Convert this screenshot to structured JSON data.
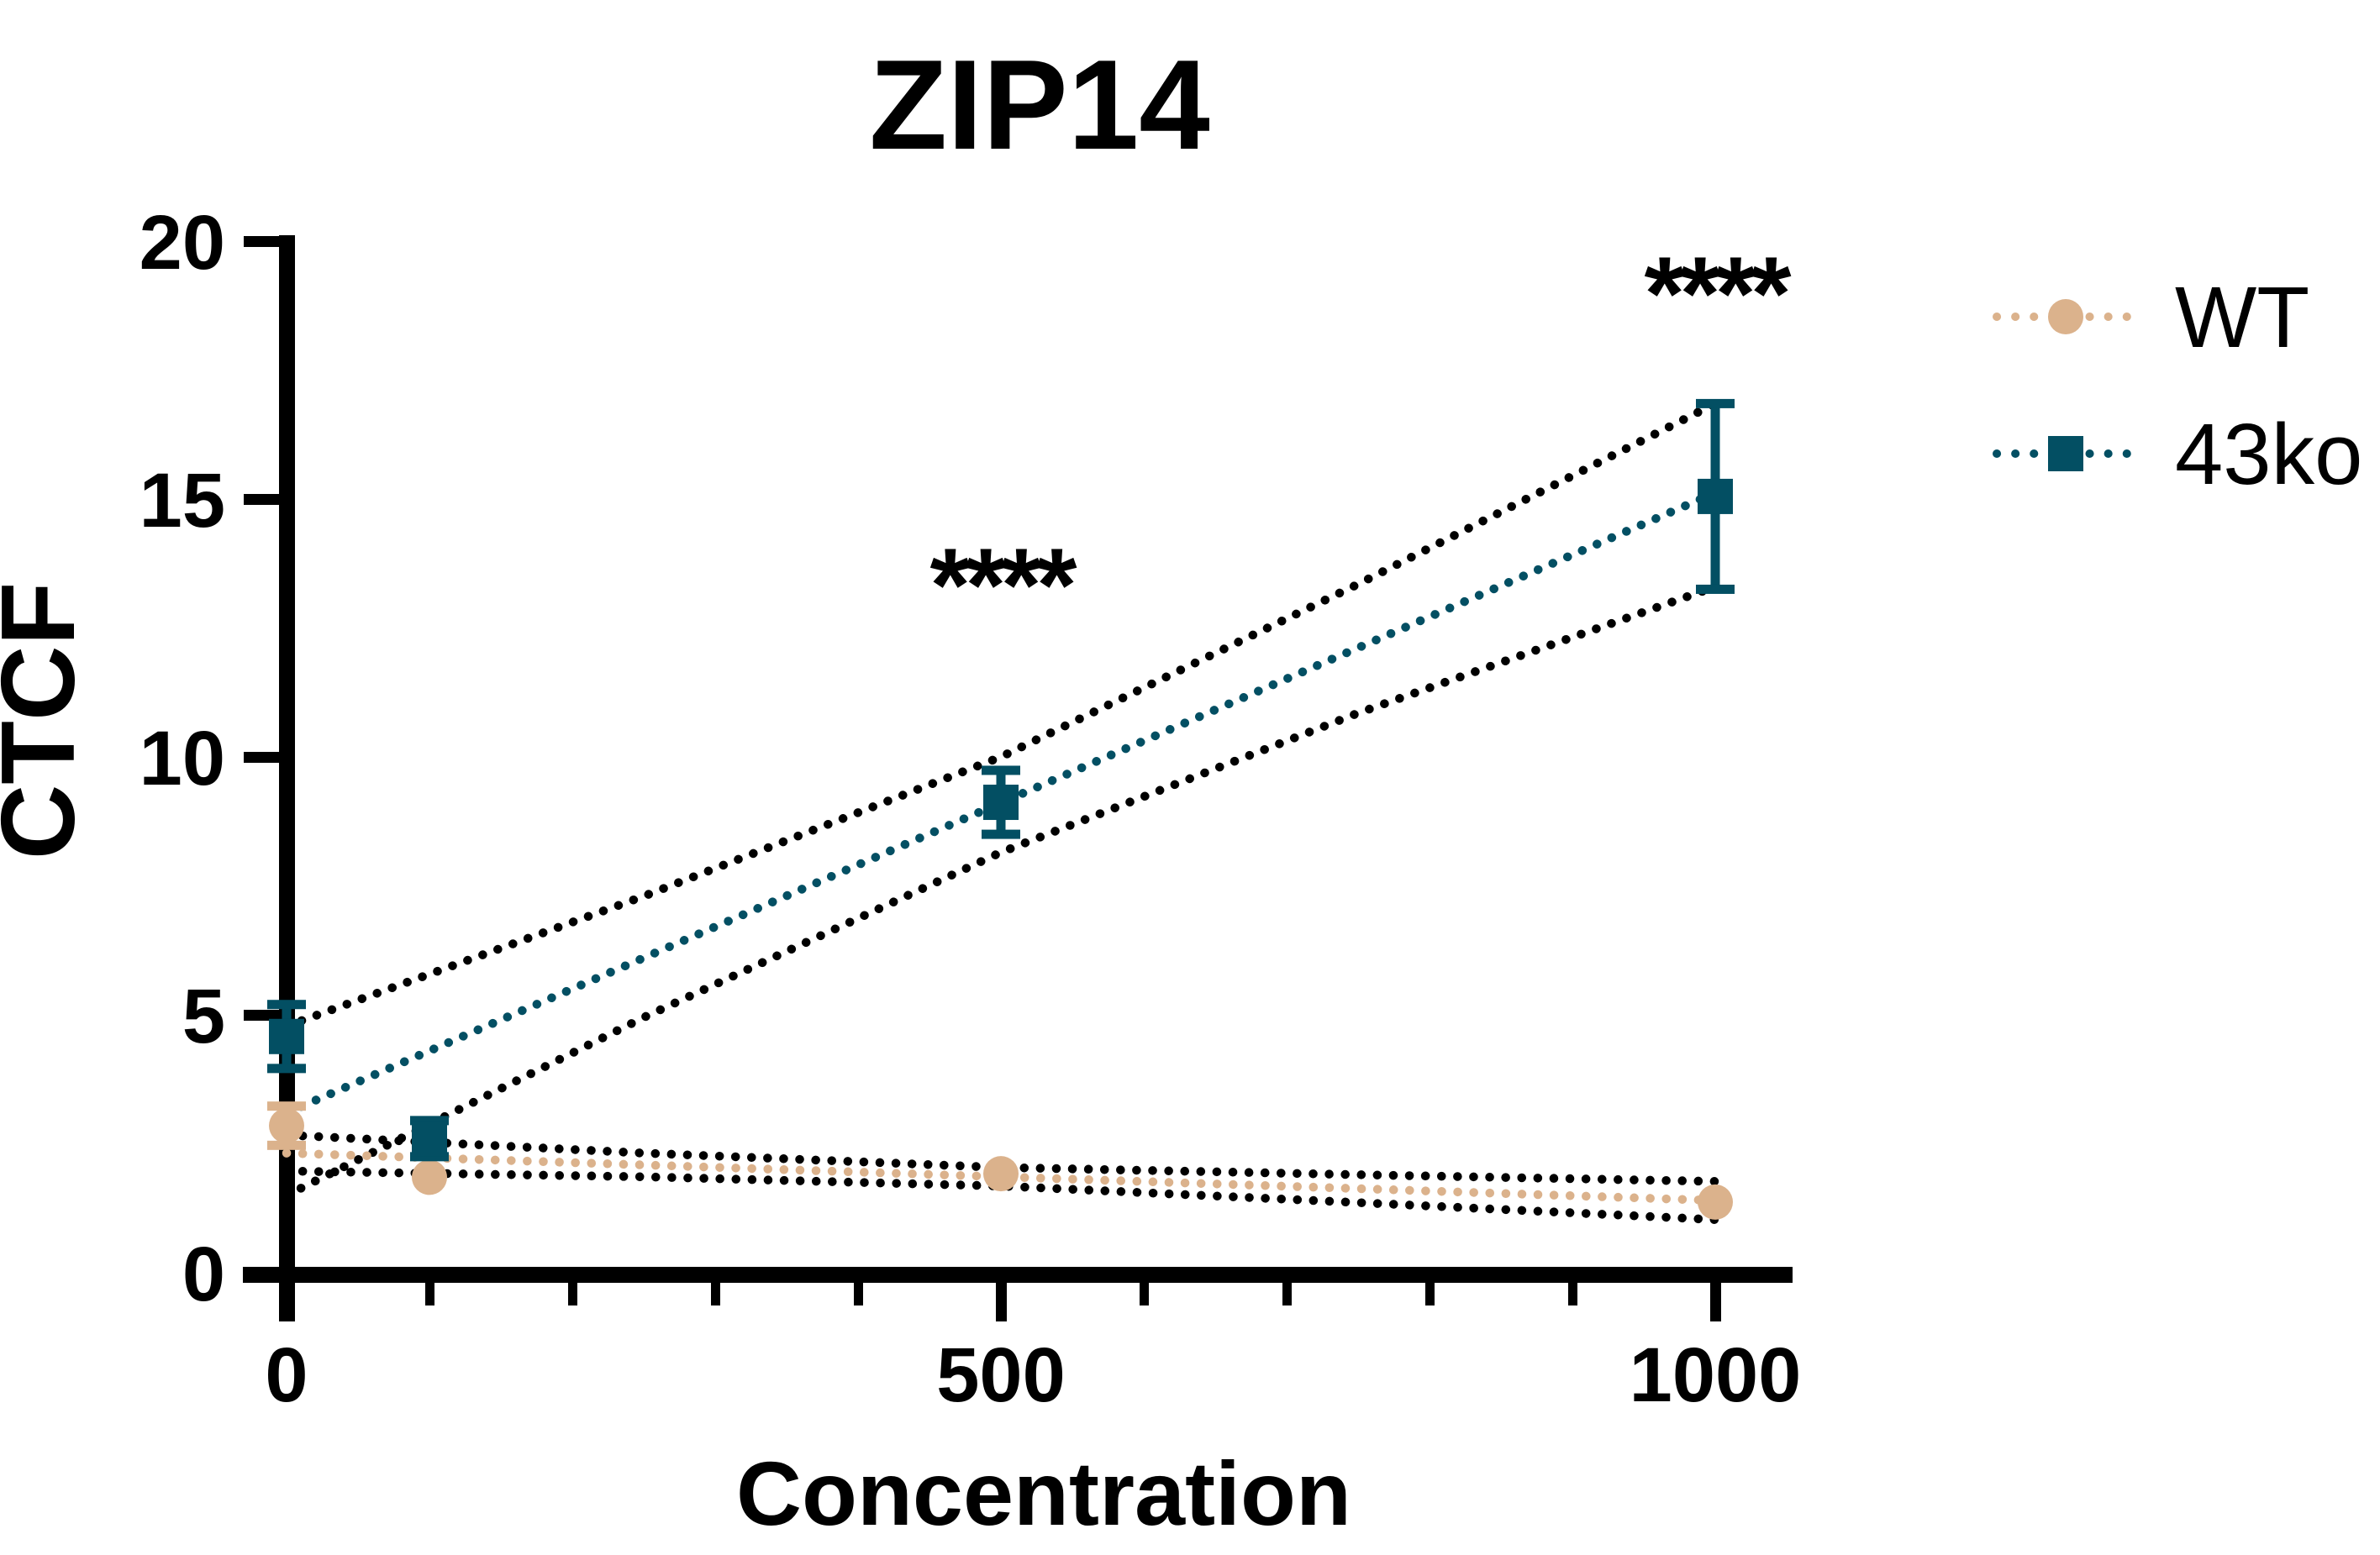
{
  "chart_data": {
    "type": "scatter",
    "title": "ZIP14",
    "xlabel": "Concentration",
    "ylabel": "CTCF",
    "xlim": [
      0,
      1050
    ],
    "ylim": [
      0,
      20
    ],
    "grid": false,
    "legend_position": "right-top",
    "y_ticks": [
      0,
      5,
      10,
      15,
      20
    ],
    "y_tick_labels": [
      "0",
      "5",
      "10",
      "15",
      "20"
    ],
    "x_major_ticks": [
      0,
      500,
      1000
    ],
    "x_tick_labels": [
      "0",
      "500",
      "1000"
    ],
    "x_minor_ticks": [
      100,
      200,
      300,
      400,
      600,
      700,
      800,
      900
    ],
    "band_color": "#000000",
    "series": [
      {
        "name": "WT",
        "color": "#DBB28C",
        "marker": "circle",
        "line_style": "dotted",
        "x": [
          0,
          100,
          500,
          1000
        ],
        "y": [
          2.85,
          1.85,
          1.92,
          1.37
        ],
        "err": [
          0.38,
          0.2,
          0.15,
          0.15
        ],
        "fit_line": [
          [
            0,
            2.32
          ],
          [
            1000,
            1.4
          ]
        ],
        "band_upper": [
          [
            0,
            2.67
          ],
          [
            250,
            2.32
          ],
          [
            500,
            2.04
          ],
          [
            750,
            1.9
          ],
          [
            1000,
            1.77
          ]
        ],
        "band_lower": [
          [
            0,
            1.97
          ],
          [
            250,
            1.86
          ],
          [
            500,
            1.68
          ],
          [
            750,
            1.36
          ],
          [
            1000,
            1.03
          ]
        ]
      },
      {
        "name": "43ko",
        "color": "#034F63",
        "marker": "square",
        "line_style": "dotted",
        "x": [
          0,
          100,
          500,
          1000
        ],
        "y": [
          4.58,
          2.6,
          9.12,
          15.05
        ],
        "err": [
          0.62,
          0.35,
          0.62,
          1.8
        ],
        "fit_line": [
          [
            0,
            3.1
          ],
          [
            1000,
            15.12
          ]
        ],
        "band_upper": [
          [
            0,
            4.78
          ],
          [
            250,
            7.3
          ],
          [
            500,
            10.0
          ],
          [
            750,
            13.35
          ],
          [
            1000,
            16.85
          ]
        ],
        "band_lower": [
          [
            0,
            1.5
          ],
          [
            250,
            4.95
          ],
          [
            500,
            8.15
          ],
          [
            750,
            10.85
          ],
          [
            1000,
            13.3
          ]
        ]
      }
    ],
    "annotations": [
      {
        "text": "****",
        "x": 500,
        "y": 13.65
      },
      {
        "text": "****",
        "x": 1000,
        "y": 19.3
      }
    ]
  },
  "legend": {
    "items": [
      {
        "label": "WT"
      },
      {
        "label": "43ko"
      }
    ]
  }
}
